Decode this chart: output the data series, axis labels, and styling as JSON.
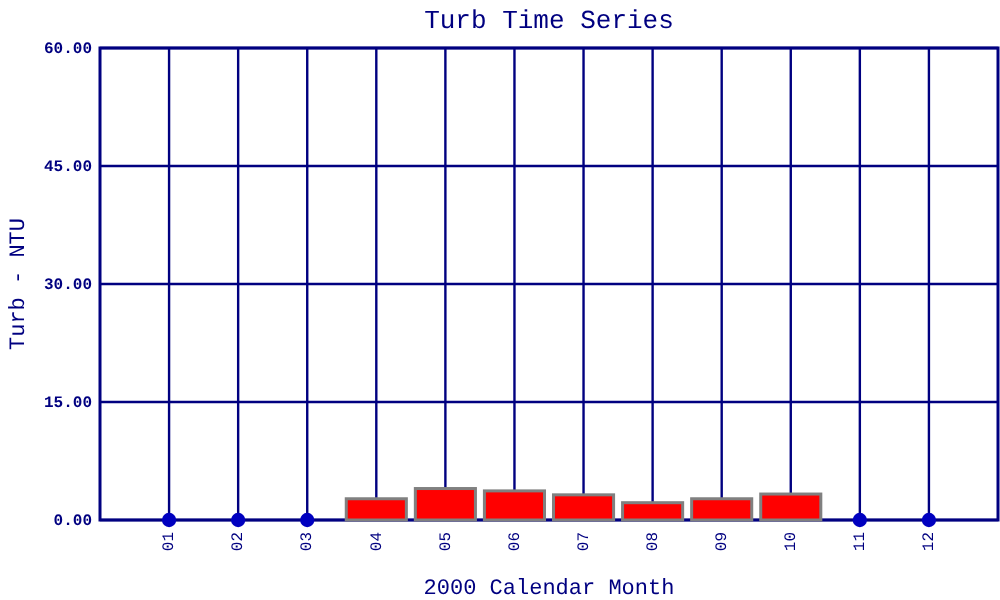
{
  "chart_data": {
    "type": "bar",
    "title": "Turb Time Series",
    "xlabel": "2000 Calendar Month",
    "ylabel": "Turb - NTU",
    "categories": [
      "01",
      "02",
      "03",
      "04",
      "05",
      "06",
      "07",
      "08",
      "09",
      "10",
      "11",
      "12"
    ],
    "series": [
      {
        "color": "#ff0000",
        "values": [
          null,
          null,
          null,
          2.7,
          4.0,
          3.7,
          3.2,
          2.2,
          2.7,
          3.3,
          null,
          null
        ]
      },
      {
        "type": "scatter",
        "color": "#0000c0",
        "x": [
          "01",
          "02",
          "03",
          "11",
          "12"
        ],
        "values": [
          0,
          0,
          0,
          0,
          0
        ]
      }
    ],
    "ylim": [
      0,
      60
    ],
    "yticks": [
      {
        "value": 0,
        "label": "0.00"
      },
      {
        "value": 15,
        "label": "15.00"
      },
      {
        "value": 30,
        "label": "30.00"
      },
      {
        "value": 45,
        "label": "45.00"
      },
      {
        "value": 60,
        "label": "60.00"
      }
    ],
    "grid": true,
    "marker": "circle"
  }
}
